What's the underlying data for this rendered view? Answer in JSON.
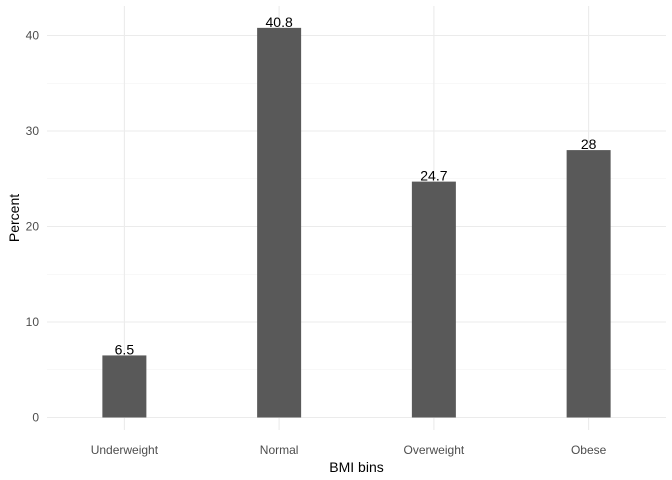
{
  "chart_data": {
    "type": "bar",
    "title": "",
    "xlabel": "BMI bins",
    "ylabel": "Percent",
    "categories": [
      "Underweight",
      "Normal",
      "Overweight",
      "Obese"
    ],
    "values": [
      6.5,
      40.8,
      24.7,
      28
    ],
    "value_labels": [
      "6.5",
      "40.8",
      "24.7",
      "28"
    ],
    "ylim": [
      0,
      43
    ],
    "y_ticks": [
      0,
      10,
      20,
      30,
      40
    ],
    "y_tick_labels": [
      "0",
      "10",
      "20",
      "30",
      "40"
    ],
    "grid": true,
    "legend": "none",
    "bar_color": "#595959",
    "grid_color": "#ebebeb"
  }
}
